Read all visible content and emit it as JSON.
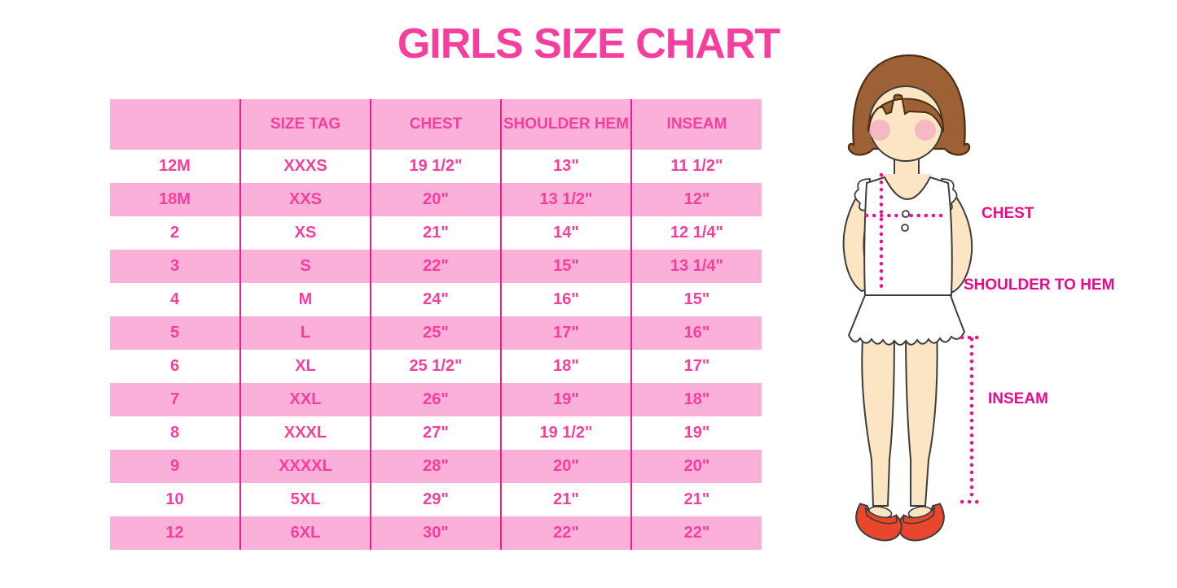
{
  "title": "GIRLS SIZE CHART",
  "chart_data": {
    "type": "table",
    "title": "GIRLS SIZE CHART",
    "columns": [
      "",
      "SIZE TAG",
      "CHEST",
      "SHOULDER HEM",
      "INSEAM"
    ],
    "rows": [
      [
        "12M",
        "XXXS",
        "19 1/2\"",
        "13\"",
        "11 1/2\""
      ],
      [
        "18M",
        "XXS",
        "20\"",
        "13 1/2\"",
        "12\""
      ],
      [
        "2",
        "XS",
        "21\"",
        "14\"",
        "12 1/4\""
      ],
      [
        "3",
        "S",
        "22\"",
        "15\"",
        "13 1/4\""
      ],
      [
        "4",
        "M",
        "24\"",
        "16\"",
        "15\""
      ],
      [
        "5",
        "L",
        "25\"",
        "17\"",
        "16\""
      ],
      [
        "6",
        "XL",
        "25 1/2\"",
        "18\"",
        "17\""
      ],
      [
        "7",
        "XXL",
        "26\"",
        "19\"",
        "18\""
      ],
      [
        "8",
        "XXXL",
        "27\"",
        "19 1/2\"",
        "19\""
      ],
      [
        "9",
        "XXXXL",
        "28\"",
        "20\"",
        "20\""
      ],
      [
        "10",
        "5XL",
        "29\"",
        "21\"",
        "21\""
      ],
      [
        "12",
        "6XL",
        "30\"",
        "22\"",
        "22\""
      ]
    ],
    "layout": {
      "striped_rows": true,
      "stripe_color": "#FBB0DA",
      "divider_color": "#EC1E8E"
    }
  },
  "diagram": {
    "labels": {
      "chest": "CHEST",
      "shoulder_to_hem": "SHOULDER TO HEM",
      "inseam": "INSEAM"
    }
  },
  "colors": {
    "title_pink": "#F43F9E",
    "row_pink": "#FBB0DA",
    "divider_pink": "#EC1E8E",
    "label_magenta": "#EA0B8C",
    "dotted_line_pink": "#ED1191",
    "hair_brown": "#9E6136",
    "skin_tone": "#FBE5C2",
    "cheek_pink": "#F3B1C3",
    "shoe_red": "#E8472B"
  }
}
